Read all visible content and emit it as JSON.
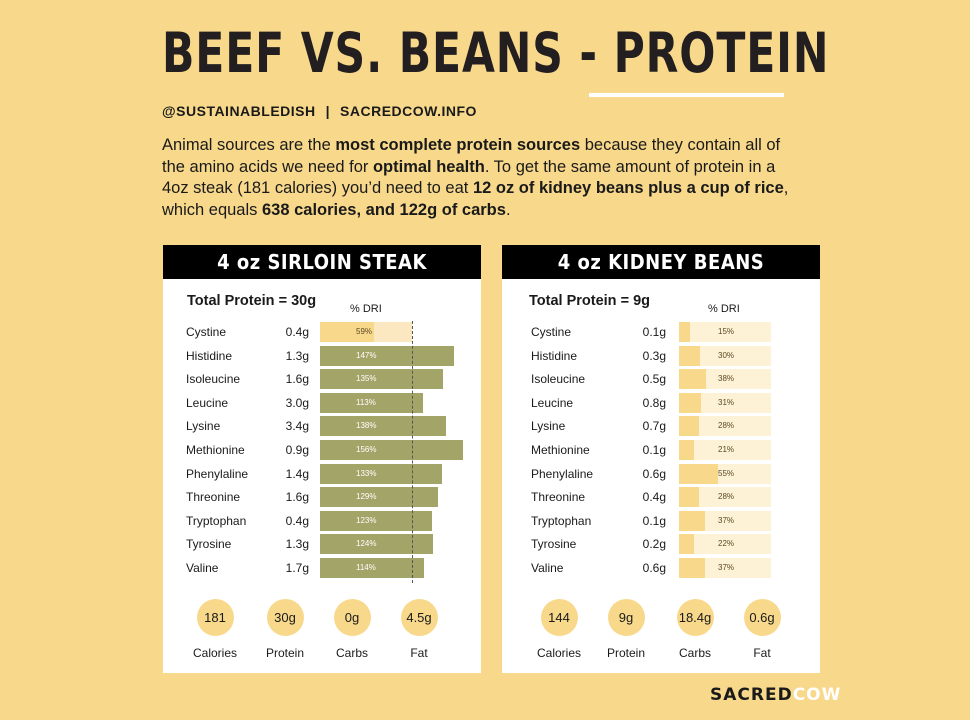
{
  "title": "BEEF VS. BEANS - PROTEIN",
  "handles": {
    "social": "@SUSTAINABLEDISH",
    "separator": "|",
    "site": "SACREDCOW.INFO"
  },
  "intro": [
    {
      "t": "Animal sources are the ",
      "b": false
    },
    {
      "t": "most complete protein sources",
      "b": true
    },
    {
      "t": " because they contain all of the amino acids we need for ",
      "b": false
    },
    {
      "t": "optimal health",
      "b": true
    },
    {
      "t": ". To get the same amount of protein in a 4oz steak (181 calories) you’d need to eat ",
      "b": false
    },
    {
      "t": "12 oz of kidney beans plus a cup of rice",
      "b": true
    },
    {
      "t": ", which equals ",
      "b": false
    },
    {
      "t": "638 calories, and 122g of carbs",
      "b": true
    },
    {
      "t": ".",
      "b": false
    }
  ],
  "colors": {
    "background": "#f8d98b",
    "steak_bar": "#a3a467",
    "steak_bar_bg": "#fbe7c0",
    "bean_bar": "#f8d98b",
    "bean_bar_bg": "#fdf1d6",
    "header": "#000000"
  },
  "chart_data": [
    {
      "type": "bar",
      "title": "4 oz SIRLOIN STEAK",
      "total_protein": "Total Protein = 30g",
      "axis_label": "% DRI",
      "categories": [
        "Cystine",
        "Histidine",
        "Isoleucine",
        "Leucine",
        "Lysine",
        "Methionine",
        "Phenylaline",
        "Threonine",
        "Tryptophan",
        "Tyrosine",
        "Valine"
      ],
      "amounts": [
        "0.4g",
        "1.3g",
        "1.6g",
        "3.0g",
        "3.4g",
        "0.9g",
        "1.4g",
        "1.6g",
        "0.4g",
        "1.3g",
        "1.7g"
      ],
      "values": [
        59,
        147,
        135,
        113,
        138,
        156,
        133,
        129,
        123,
        124,
        114
      ],
      "reference_line": 100,
      "stats": [
        {
          "value": "181",
          "label": "Calories"
        },
        {
          "value": "30g",
          "label": "Protein"
        },
        {
          "value": "0g",
          "label": "Carbs"
        },
        {
          "value": "4.5g",
          "label": "Fat"
        }
      ]
    },
    {
      "type": "bar",
      "title": "4 oz KIDNEY BEANS",
      "total_protein": "Total Protein = 9g",
      "axis_label": "% DRI",
      "categories": [
        "Cystine",
        "Histidine",
        "Isoleucine",
        "Leucine",
        "Lysine",
        "Methionine",
        "Phenylaline",
        "Threonine",
        "Tryptophan",
        "Tyrosine",
        "Valine"
      ],
      "amounts": [
        "0.1g",
        "0.3g",
        "0.5g",
        "0.8g",
        "0.7g",
        "0.1g",
        "0.6g",
        "0.4g",
        "0.1g",
        "0.2g",
        "0.6g"
      ],
      "values": [
        15,
        30,
        38,
        31,
        28,
        21,
        55,
        28,
        37,
        22,
        37
      ],
      "stats": [
        {
          "value": "144",
          "label": "Calories"
        },
        {
          "value": "9g",
          "label": "Protein"
        },
        {
          "value": "18.4g",
          "label": "Carbs"
        },
        {
          "value": "0.6g",
          "label": "Fat"
        }
      ]
    }
  ],
  "brand": {
    "part1": "SACRED",
    "part2": "COW"
  }
}
